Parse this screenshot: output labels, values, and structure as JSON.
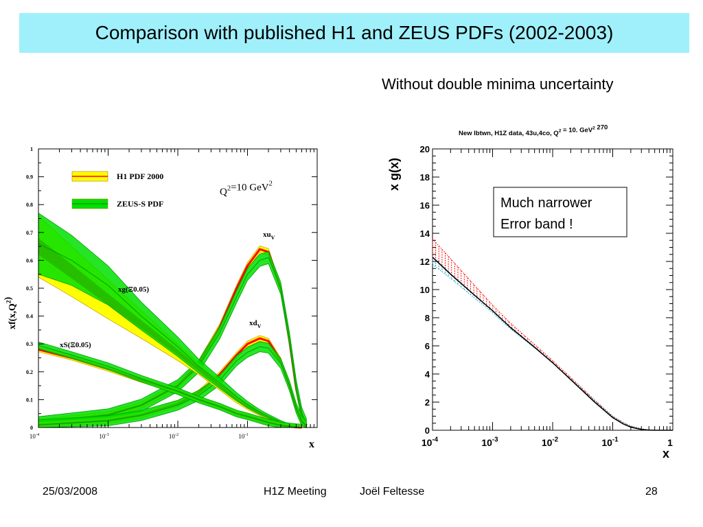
{
  "slide": {
    "title": "Comparison with published H1 and ZEUS PDFs (2002-2003)",
    "subtitle": "Without double minima uncertainty",
    "footer": {
      "date": "25/03/2008",
      "meeting": "H1Z Meeting",
      "author": "Joël Feltesse",
      "page": "28"
    }
  },
  "chart_data": [
    {
      "type": "area",
      "title": "",
      "xlabel": "x",
      "ylabel": "xf(x,Q²)",
      "xscale": "log",
      "xlim": [
        0.0001,
        1
      ],
      "ylim": [
        0,
        1
      ],
      "xticks": [
        {
          "value": 0.0001,
          "base": "10",
          "exp": "-4"
        },
        {
          "value": 0.001,
          "base": "10",
          "exp": "-3"
        },
        {
          "value": 0.01,
          "base": "10",
          "exp": "-2"
        },
        {
          "value": 0.1,
          "base": "10",
          "exp": "-1"
        }
      ],
      "yticks": [
        "0",
        "0.1",
        "0.2",
        "0.3",
        "0.4",
        "0.5",
        "0.6",
        "0.7",
        "0.8",
        "0.9",
        "1"
      ],
      "scale_label": "Q²=10 GeV²",
      "legend": {
        "placement": "top-left",
        "entries": [
          {
            "label": "H1 PDF 2000",
            "fill": "#ffff00",
            "line": "#ff0000"
          },
          {
            "label": "ZEUS-S PDF",
            "fill": "#00e000",
            "line": "#00a000"
          }
        ]
      },
      "curve_labels": [
        {
          "series": "xuV",
          "text": "xu",
          "sub": "V"
        },
        {
          "series": "xdV",
          "text": "xd",
          "sub": "V"
        },
        {
          "series": "xg",
          "text": "xg(Ξ0.05)"
        },
        {
          "series": "xS",
          "text": "xS(Ξ0.05)"
        }
      ],
      "series": [
        {
          "id": "xuV",
          "x": [
            0.0001,
            0.001,
            0.003,
            0.01,
            0.02,
            0.04,
            0.07,
            0.1,
            0.15,
            0.2,
            0.3,
            0.4,
            0.5,
            0.6,
            0.7
          ],
          "h1": [
            0.017,
            0.045,
            0.08,
            0.15,
            0.23,
            0.36,
            0.5,
            0.58,
            0.64,
            0.63,
            0.5,
            0.31,
            0.14,
            0.045,
            0.008
          ],
          "h1_halfwidth": 0.012,
          "zeus": [
            0.017,
            0.045,
            0.08,
            0.15,
            0.22,
            0.34,
            0.47,
            0.55,
            0.6,
            0.61,
            0.5,
            0.32,
            0.15,
            0.05,
            0.01
          ],
          "zeus_halfwidth": 0.022
        },
        {
          "id": "xdV",
          "x": [
            0.0001,
            0.001,
            0.003,
            0.01,
            0.02,
            0.04,
            0.07,
            0.1,
            0.15,
            0.2,
            0.3,
            0.4,
            0.5,
            0.6,
            0.7
          ],
          "h1": [
            0.009,
            0.025,
            0.045,
            0.085,
            0.125,
            0.19,
            0.26,
            0.3,
            0.32,
            0.31,
            0.24,
            0.15,
            0.07,
            0.022,
            0.004
          ],
          "h1_halfwidth": 0.01,
          "zeus": [
            0.009,
            0.024,
            0.043,
            0.08,
            0.115,
            0.17,
            0.24,
            0.27,
            0.29,
            0.285,
            0.23,
            0.15,
            0.07,
            0.024,
            0.005
          ],
          "zeus_halfwidth": 0.018
        },
        {
          "id": "xg",
          "x": [
            0.0001,
            0.0003,
            0.001,
            0.003,
            0.01,
            0.02,
            0.04,
            0.07,
            0.1,
            0.15,
            0.2,
            0.3,
            0.4,
            0.5,
            0.6
          ],
          "h1": [
            0.65,
            0.56,
            0.46,
            0.37,
            0.27,
            0.21,
            0.15,
            0.1,
            0.075,
            0.05,
            0.035,
            0.017,
            0.008,
            0.003,
            0.001
          ],
          "h1_halfwidth": [
            0.11,
            0.09,
            0.07,
            0.05,
            0.03,
            0.02,
            0.016,
            0.012,
            0.01,
            0.008,
            0.006,
            0.004,
            0.003,
            0.002,
            0.001
          ],
          "h1_center_halfwidth": [
            0.03,
            0.025,
            0.02,
            0.015,
            0.01,
            0.008,
            0.006,
            0.005,
            0.004,
            0.003,
            0.002,
            0.002,
            0.001,
            0.001,
            0.0005
          ],
          "zeus": [
            0.66,
            0.6,
            0.51,
            0.4,
            0.29,
            0.22,
            0.16,
            0.11,
            0.082,
            0.055,
            0.04,
            0.02,
            0.01,
            0.004,
            0.001
          ],
          "zeus_halfwidth": [
            0.11,
            0.09,
            0.07,
            0.05,
            0.035,
            0.025,
            0.02,
            0.015,
            0.012,
            0.009,
            0.007,
            0.005,
            0.003,
            0.002,
            0.001
          ]
        },
        {
          "id": "xS",
          "x": [
            0.0001,
            0.0003,
            0.001,
            0.003,
            0.01,
            0.02,
            0.04,
            0.07,
            0.1,
            0.15,
            0.2,
            0.3,
            0.4,
            0.5,
            0.6
          ],
          "h1": [
            0.28,
            0.25,
            0.21,
            0.17,
            0.13,
            0.1,
            0.075,
            0.05,
            0.04,
            0.027,
            0.018,
            0.008,
            0.004,
            0.001,
            0.0
          ],
          "h1_halfwidth": 0.008,
          "zeus": [
            0.295,
            0.26,
            0.22,
            0.175,
            0.13,
            0.1,
            0.075,
            0.05,
            0.04,
            0.027,
            0.018,
            0.008,
            0.004,
            0.001,
            0.0
          ],
          "zeus_halfwidth": 0.012
        }
      ]
    },
    {
      "type": "line",
      "title": "New lbtwn, H1Z data, 43u,4co, Q² = 10. GeV² 270",
      "xlabel": "x",
      "ylabel": "x g(x)",
      "xscale": "log",
      "xlim": [
        0.0001,
        1
      ],
      "ylim": [
        0,
        20
      ],
      "xticks": [
        {
          "value": 0.0001,
          "base": "10",
          "exp": "-4"
        },
        {
          "value": 0.001,
          "base": "10",
          "exp": "-3"
        },
        {
          "value": 0.01,
          "base": "10",
          "exp": "-2"
        },
        {
          "value": 0.1,
          "base": "10",
          "exp": "-1"
        },
        {
          "value": 1,
          "base": "1",
          "exp": ""
        }
      ],
      "yticks": [
        "0",
        "2",
        "4",
        "6",
        "8",
        "10",
        "12",
        "14",
        "16",
        "18",
        "20"
      ],
      "annotation": {
        "lines": [
          "Much narrower",
          "Error band !"
        ],
        "placement": "top-right"
      },
      "series": [
        {
          "name": "central",
          "color": "#000000",
          "x": [
            0.0001,
            0.0002,
            0.0005,
            0.001,
            0.002,
            0.005,
            0.01,
            0.02,
            0.05,
            0.1,
            0.15,
            0.2,
            0.3,
            0.4,
            0.5,
            0.7,
            1.0
          ],
          "y": [
            12.3,
            11.1,
            9.6,
            8.5,
            7.3,
            5.9,
            4.8,
            3.6,
            2.0,
            0.9,
            0.45,
            0.22,
            0.06,
            0.01,
            0.0,
            0.0,
            0.0
          ]
        },
        {
          "name": "upper error",
          "color": "#ff0000",
          "style": "hatched",
          "x": [
            0.0001,
            0.0002,
            0.0005,
            0.001,
            0.002,
            0.005,
            0.01,
            0.02,
            0.05,
            0.1,
            0.15,
            0.2,
            0.3,
            0.4,
            0.5
          ],
          "y": [
            13.6,
            12.2,
            10.3,
            8.9,
            7.6,
            6.1,
            4.95,
            3.75,
            2.15,
            1.0,
            0.55,
            0.3,
            0.1,
            0.02,
            0.0
          ]
        },
        {
          "name": "lower error",
          "color": "#00a0c0",
          "style": "dotted",
          "x": [
            0.0001,
            0.0002,
            0.0005,
            0.001,
            0.002,
            0.005,
            0.01,
            0.02,
            0.05,
            0.1,
            0.15,
            0.2,
            0.3,
            0.4,
            0.5
          ],
          "y": [
            11.8,
            10.8,
            9.4,
            8.35,
            7.2,
            5.85,
            4.8,
            3.65,
            2.1,
            1.0,
            0.55,
            0.3,
            0.1,
            0.02,
            0.0
          ]
        }
      ]
    }
  ]
}
